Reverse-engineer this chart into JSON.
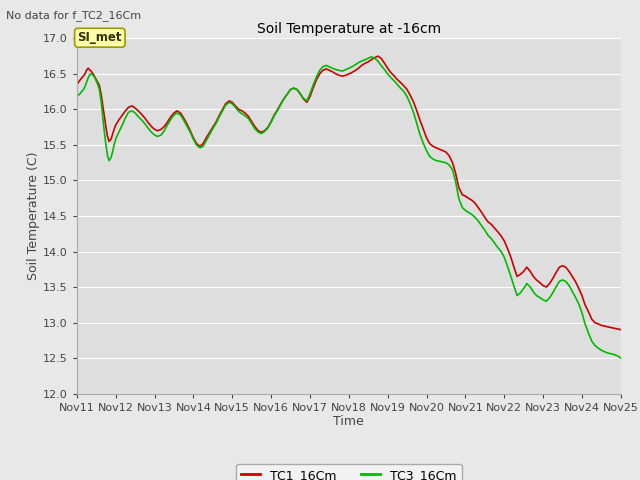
{
  "title": "Soil Temperature at -16cm",
  "xlabel": "Time",
  "ylabel": "Soil Temperature (C)",
  "top_left_text": "No data for f_TC2_16Cm",
  "annotation_box": "SI_met",
  "ylim": [
    12.0,
    17.0
  ],
  "yticks": [
    12.0,
    12.5,
    13.0,
    13.5,
    14.0,
    14.5,
    15.0,
    15.5,
    16.0,
    16.5,
    17.0
  ],
  "xtick_labels": [
    "Nov 11",
    "Nov 12",
    "Nov 13",
    "Nov 14",
    "Nov 15",
    "Nov 16",
    "Nov 17",
    "Nov 18",
    "Nov 19",
    "Nov 20",
    "Nov 21",
    "Nov 22",
    "Nov 23",
    "Nov 24",
    "Nov 25"
  ],
  "background_color": "#e8e8e8",
  "plot_bg_color": "#dedede",
  "grid_color": "#ffffff",
  "line1_color": "#cc0000",
  "line2_color": "#00bb00",
  "line1_label": "TC1_16Cm",
  "line2_label": "TC3_16Cm",
  "legend_line_colors": [
    "#cc0000",
    "#00bb00"
  ],
  "TC1_x": [
    11.0,
    11.04,
    11.08,
    11.12,
    11.17,
    11.21,
    11.25,
    11.29,
    11.33,
    11.38,
    11.42,
    11.46,
    11.5,
    11.54,
    11.58,
    11.63,
    11.67,
    11.71,
    11.75,
    11.79,
    11.83,
    11.88,
    11.92,
    11.96,
    12.0,
    12.08,
    12.17,
    12.25,
    12.33,
    12.42,
    12.5,
    12.58,
    12.67,
    12.75,
    12.83,
    12.92,
    13.0,
    13.08,
    13.17,
    13.25,
    13.33,
    13.42,
    13.5,
    13.58,
    13.67,
    13.75,
    13.83,
    13.92,
    14.0,
    14.08,
    14.17,
    14.25,
    14.33,
    14.42,
    14.5,
    14.58,
    14.67,
    14.75,
    14.83,
    14.92,
    15.0,
    15.08,
    15.17,
    15.25,
    15.33,
    15.42,
    15.5,
    15.58,
    15.67,
    15.75,
    15.83,
    15.92,
    16.0,
    16.08,
    16.17,
    16.25,
    16.33,
    16.42,
    16.5,
    16.58,
    16.67,
    16.75,
    16.83,
    16.92,
    17.0,
    17.08,
    17.17,
    17.25,
    17.33,
    17.42,
    17.5,
    17.58,
    17.67,
    17.75,
    17.83,
    17.92,
    18.0,
    18.08,
    18.17,
    18.25,
    18.33,
    18.42,
    18.5,
    18.58,
    18.67,
    18.75,
    18.83,
    18.92,
    19.0,
    19.08,
    19.17,
    19.25,
    19.33,
    19.42,
    19.5,
    19.58,
    19.67,
    19.75,
    19.83,
    19.92,
    20.0,
    20.08,
    20.17,
    20.25,
    20.33,
    20.42,
    20.5,
    20.58,
    20.67,
    20.75,
    20.83,
    20.92,
    21.0,
    21.08,
    21.17,
    21.25,
    21.33,
    21.42,
    21.5,
    21.58,
    21.67,
    21.75,
    21.83,
    21.92,
    22.0,
    22.08,
    22.17,
    22.25,
    22.33,
    22.42,
    22.5,
    22.58,
    22.67,
    22.75,
    22.83,
    22.92,
    23.0,
    23.08,
    23.17,
    23.25,
    23.33,
    23.42,
    23.5,
    23.58,
    23.67,
    23.75,
    23.83,
    23.92,
    24.0,
    24.08,
    24.17,
    24.25,
    24.33,
    24.42,
    24.5,
    24.58,
    24.67,
    24.75,
    24.83,
    24.92,
    25.0
  ],
  "TC1_y": [
    16.35,
    16.38,
    16.41,
    16.44,
    16.47,
    16.5,
    16.55,
    16.58,
    16.56,
    16.53,
    16.5,
    16.46,
    16.42,
    16.38,
    16.34,
    16.2,
    16.05,
    15.9,
    15.75,
    15.62,
    15.55,
    15.58,
    15.65,
    15.72,
    15.78,
    15.85,
    15.92,
    15.98,
    16.03,
    16.05,
    16.02,
    15.98,
    15.93,
    15.88,
    15.82,
    15.76,
    15.72,
    15.7,
    15.72,
    15.76,
    15.82,
    15.9,
    15.95,
    15.98,
    15.95,
    15.88,
    15.8,
    15.7,
    15.6,
    15.52,
    15.48,
    15.52,
    15.6,
    15.68,
    15.75,
    15.82,
    15.92,
    16.0,
    16.08,
    16.12,
    16.1,
    16.05,
    16.0,
    15.98,
    15.95,
    15.9,
    15.83,
    15.76,
    15.7,
    15.68,
    15.7,
    15.75,
    15.83,
    15.92,
    16.0,
    16.08,
    16.15,
    16.22,
    16.28,
    16.3,
    16.28,
    16.22,
    16.15,
    16.1,
    16.18,
    16.3,
    16.42,
    16.5,
    16.55,
    16.57,
    16.55,
    16.53,
    16.5,
    16.48,
    16.47,
    16.48,
    16.5,
    16.52,
    16.55,
    16.58,
    16.62,
    16.65,
    16.67,
    16.7,
    16.73,
    16.75,
    16.72,
    16.65,
    16.58,
    16.52,
    16.47,
    16.42,
    16.38,
    16.33,
    16.28,
    16.2,
    16.1,
    15.98,
    15.85,
    15.72,
    15.6,
    15.52,
    15.48,
    15.46,
    15.44,
    15.42,
    15.4,
    15.35,
    15.25,
    15.1,
    14.9,
    14.8,
    14.78,
    14.75,
    14.72,
    14.68,
    14.62,
    14.55,
    14.48,
    14.42,
    14.38,
    14.33,
    14.28,
    14.22,
    14.15,
    14.05,
    13.92,
    13.78,
    13.65,
    13.68,
    13.72,
    13.78,
    13.72,
    13.65,
    13.6,
    13.56,
    13.52,
    13.5,
    13.55,
    13.62,
    13.7,
    13.78,
    13.8,
    13.78,
    13.72,
    13.65,
    13.58,
    13.48,
    13.38,
    13.25,
    13.15,
    13.05,
    13.0,
    12.98,
    12.96,
    12.95,
    12.94,
    12.93,
    12.92,
    12.91,
    12.9
  ],
  "TC3_x": [
    11.0,
    11.04,
    11.08,
    11.12,
    11.17,
    11.21,
    11.25,
    11.29,
    11.33,
    11.38,
    11.42,
    11.46,
    11.5,
    11.54,
    11.58,
    11.63,
    11.67,
    11.71,
    11.75,
    11.79,
    11.83,
    11.88,
    11.92,
    11.96,
    12.0,
    12.08,
    12.17,
    12.25,
    12.33,
    12.42,
    12.5,
    12.58,
    12.67,
    12.75,
    12.83,
    12.92,
    13.0,
    13.08,
    13.17,
    13.25,
    13.33,
    13.42,
    13.5,
    13.58,
    13.67,
    13.75,
    13.83,
    13.92,
    14.0,
    14.08,
    14.17,
    14.25,
    14.33,
    14.42,
    14.5,
    14.58,
    14.67,
    14.75,
    14.83,
    14.92,
    15.0,
    15.08,
    15.17,
    15.25,
    15.33,
    15.42,
    15.5,
    15.58,
    15.67,
    15.75,
    15.83,
    15.92,
    16.0,
    16.08,
    16.17,
    16.25,
    16.33,
    16.42,
    16.5,
    16.58,
    16.67,
    16.75,
    16.83,
    16.92,
    17.0,
    17.08,
    17.17,
    17.25,
    17.33,
    17.42,
    17.5,
    17.58,
    17.67,
    17.75,
    17.83,
    17.92,
    18.0,
    18.08,
    18.17,
    18.25,
    18.33,
    18.42,
    18.5,
    18.58,
    18.67,
    18.75,
    18.83,
    18.92,
    19.0,
    19.08,
    19.17,
    19.25,
    19.33,
    19.42,
    19.5,
    19.58,
    19.67,
    19.75,
    19.83,
    19.92,
    20.0,
    20.08,
    20.17,
    20.25,
    20.33,
    20.42,
    20.5,
    20.58,
    20.67,
    20.75,
    20.83,
    20.92,
    21.0,
    21.08,
    21.17,
    21.25,
    21.33,
    21.42,
    21.5,
    21.58,
    21.67,
    21.75,
    21.83,
    21.92,
    22.0,
    22.08,
    22.17,
    22.25,
    22.33,
    22.42,
    22.5,
    22.58,
    22.67,
    22.75,
    22.83,
    22.92,
    23.0,
    23.08,
    23.17,
    23.25,
    23.33,
    23.42,
    23.5,
    23.58,
    23.67,
    23.75,
    23.83,
    23.92,
    24.0,
    24.08,
    24.17,
    24.25,
    24.33,
    24.42,
    24.5,
    24.58,
    24.67,
    24.75,
    24.83,
    24.92,
    25.0
  ],
  "TC3_y": [
    16.18,
    16.2,
    16.22,
    16.25,
    16.28,
    16.32,
    16.38,
    16.44,
    16.49,
    16.5,
    16.48,
    16.45,
    16.4,
    16.35,
    16.28,
    16.1,
    15.88,
    15.68,
    15.5,
    15.35,
    15.28,
    15.32,
    15.4,
    15.5,
    15.58,
    15.68,
    15.78,
    15.88,
    15.96,
    15.98,
    15.95,
    15.9,
    15.85,
    15.8,
    15.74,
    15.68,
    15.64,
    15.62,
    15.64,
    15.7,
    15.78,
    15.86,
    15.92,
    15.95,
    15.92,
    15.85,
    15.77,
    15.68,
    15.58,
    15.5,
    15.46,
    15.48,
    15.56,
    15.65,
    15.73,
    15.8,
    15.9,
    15.98,
    16.06,
    16.1,
    16.08,
    16.03,
    15.97,
    15.94,
    15.91,
    15.87,
    15.8,
    15.73,
    15.68,
    15.66,
    15.69,
    15.74,
    15.82,
    15.91,
    15.99,
    16.07,
    16.15,
    16.22,
    16.28,
    16.3,
    16.28,
    16.22,
    16.16,
    16.12,
    16.22,
    16.34,
    16.46,
    16.55,
    16.6,
    16.62,
    16.6,
    16.58,
    16.56,
    16.55,
    16.54,
    16.56,
    16.58,
    16.6,
    16.63,
    16.66,
    16.68,
    16.7,
    16.72,
    16.74,
    16.72,
    16.68,
    16.62,
    16.56,
    16.5,
    16.45,
    16.4,
    16.35,
    16.3,
    16.25,
    16.18,
    16.08,
    15.95,
    15.8,
    15.65,
    15.52,
    15.42,
    15.34,
    15.3,
    15.28,
    15.27,
    15.26,
    15.25,
    15.22,
    15.15,
    14.98,
    14.75,
    14.62,
    14.58,
    14.55,
    14.52,
    14.48,
    14.43,
    14.36,
    14.3,
    14.23,
    14.18,
    14.12,
    14.06,
    14.0,
    13.92,
    13.8,
    13.65,
    13.52,
    13.38,
    13.42,
    13.48,
    13.55,
    13.5,
    13.43,
    13.38,
    13.35,
    13.32,
    13.3,
    13.35,
    13.42,
    13.5,
    13.58,
    13.6,
    13.58,
    13.52,
    13.44,
    13.36,
    13.26,
    13.14,
    12.98,
    12.85,
    12.74,
    12.68,
    12.64,
    12.61,
    12.59,
    12.57,
    12.56,
    12.55,
    12.53,
    12.5
  ]
}
